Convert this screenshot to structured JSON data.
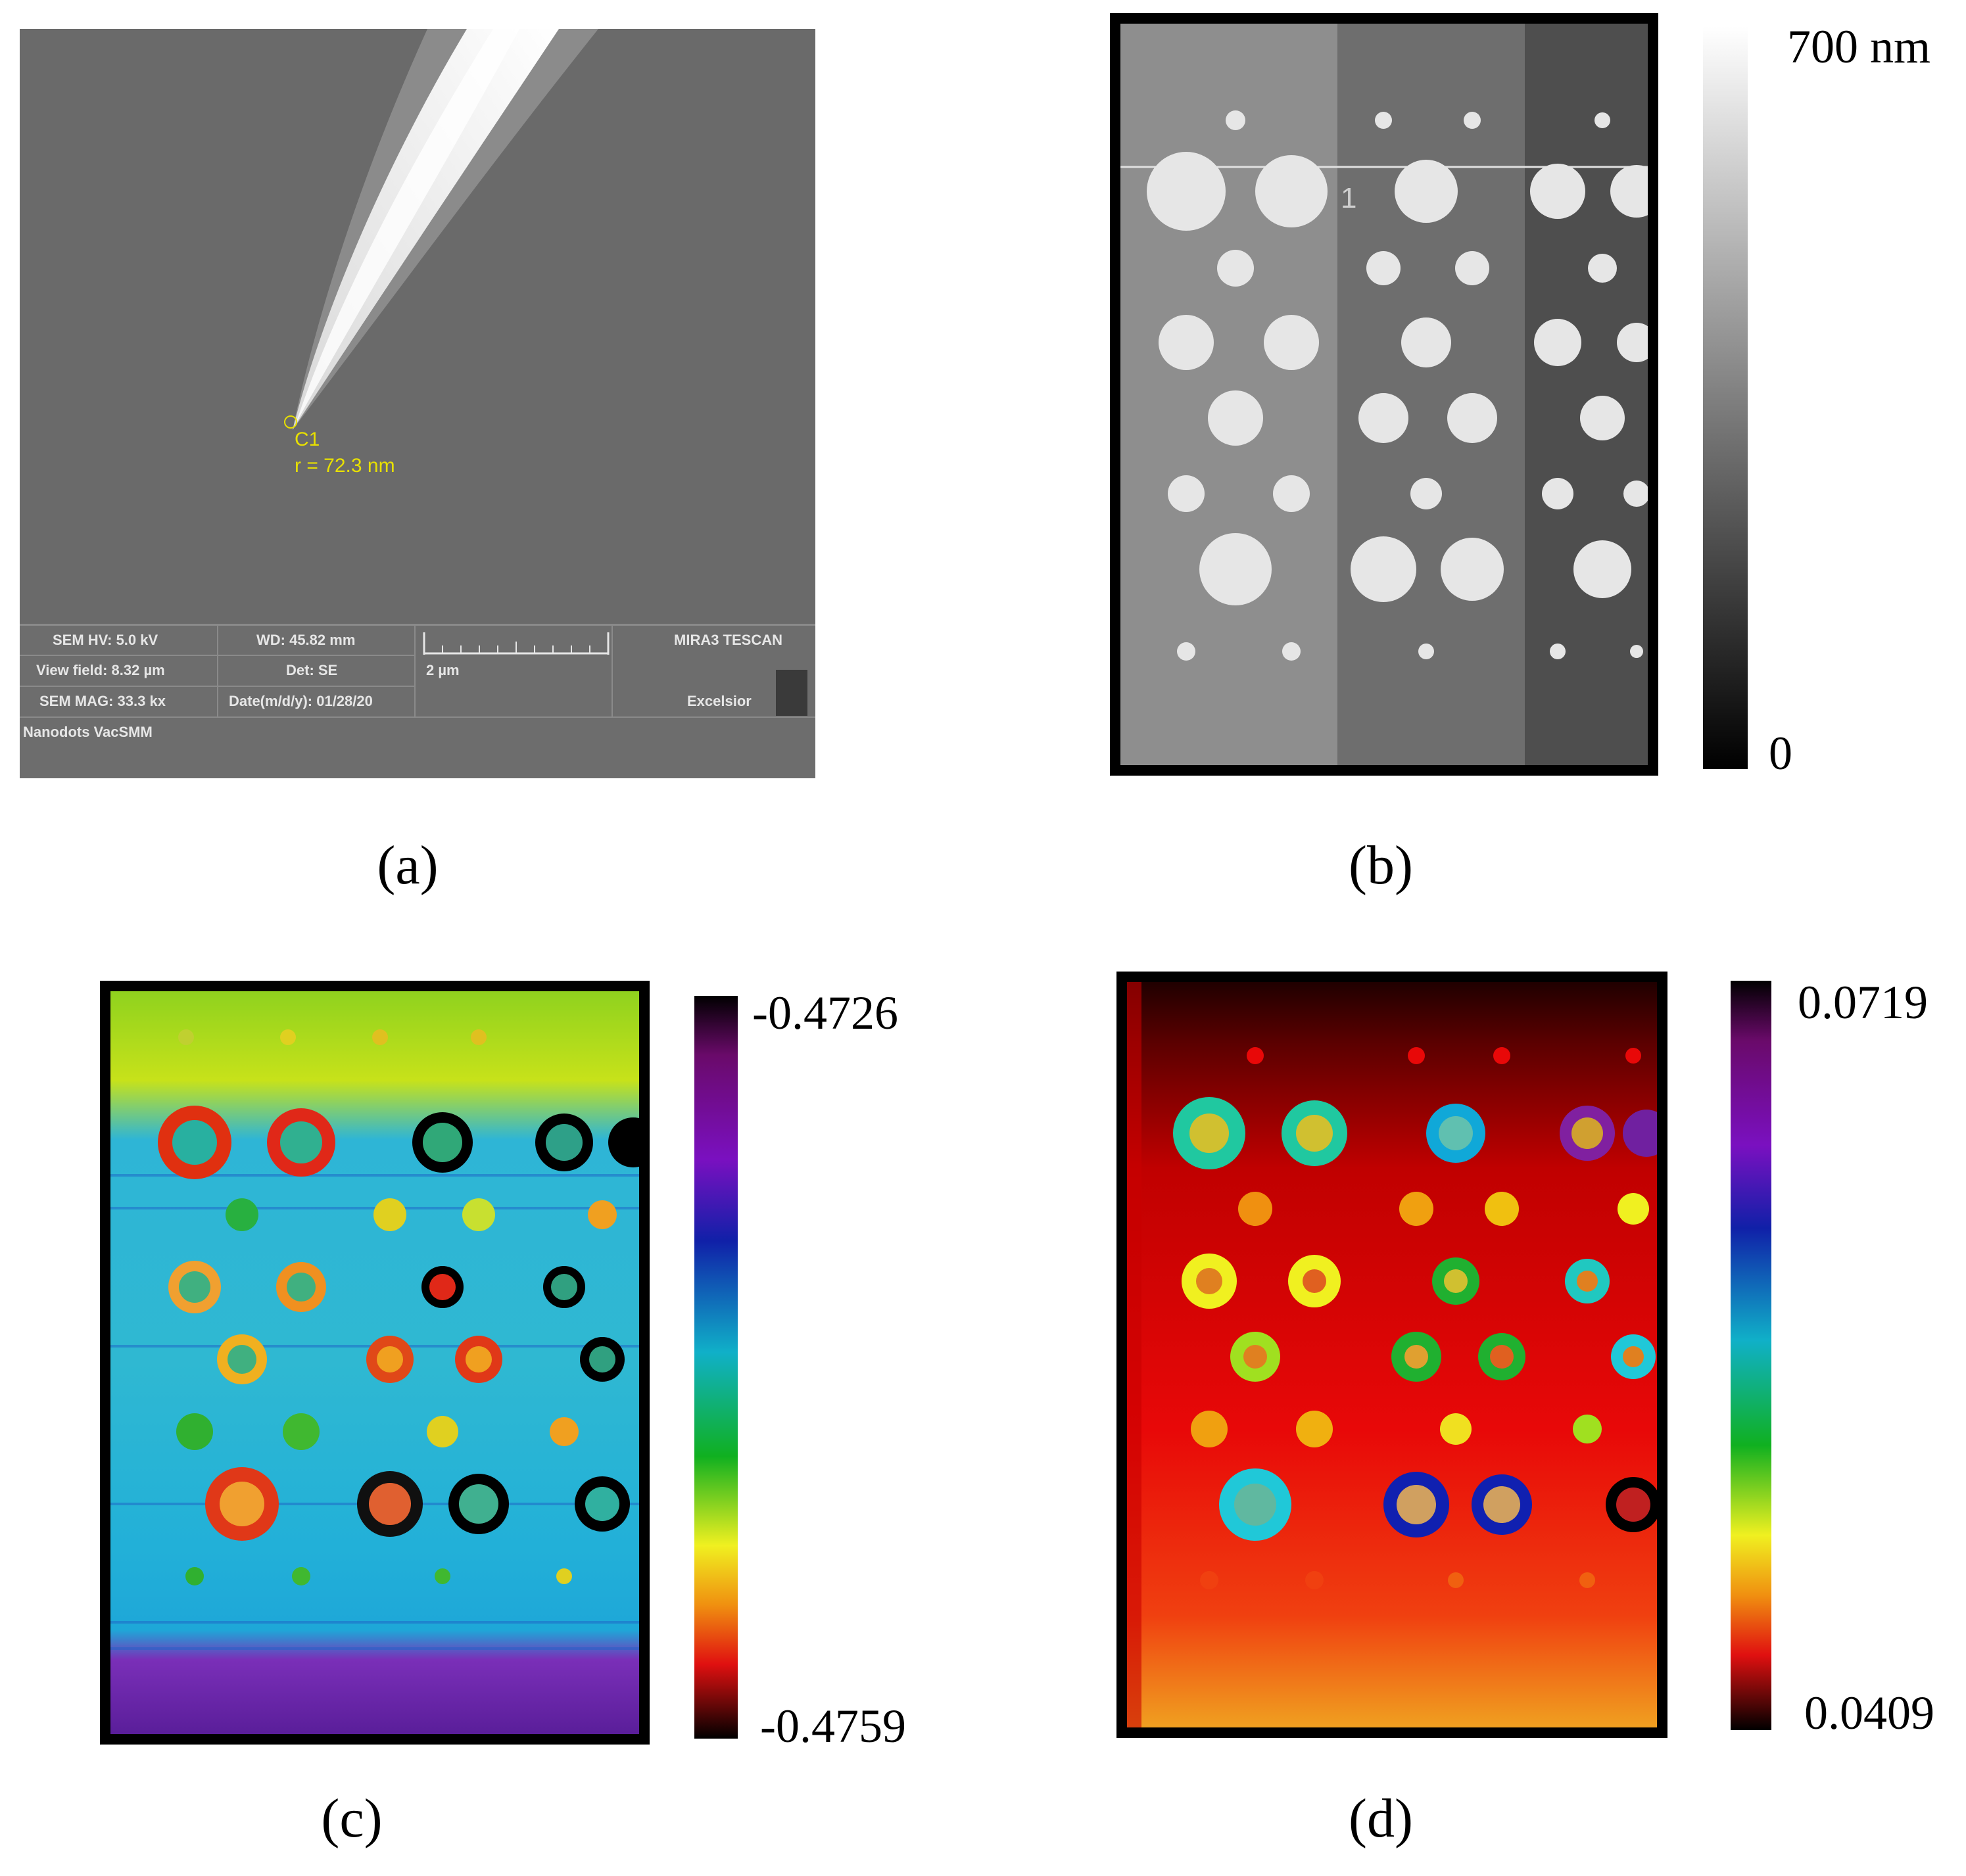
{
  "panels": {
    "a": {
      "caption": "(a)",
      "marker": "C1",
      "radius_text": "r = 72.3 nm",
      "info": {
        "hv": "SEM HV: 5.0 kV",
        "wd": "WD: 45.82 mm",
        "view_field": "View field: 8.32 µm",
        "det": "Det: SE",
        "scale": "2 µm",
        "mag": "SEM MAG: 33.3 kx",
        "date": "Date(m/d/y): 01/28/20",
        "brand": "MIRA3 TESCAN",
        "brand2": "Excelsior",
        "sample": "Nanodots VacSMM"
      }
    },
    "b": {
      "caption": "(b)",
      "profile_marker": "1",
      "colorbar_max": "700 nm",
      "colorbar_min": "0"
    },
    "c": {
      "caption": "(c)",
      "colorbar_max": "-0.4726",
      "colorbar_min": "-0.4759"
    },
    "d": {
      "caption": "(d)",
      "colorbar_max": "0.0719",
      "colorbar_min": "0.0409"
    }
  }
}
